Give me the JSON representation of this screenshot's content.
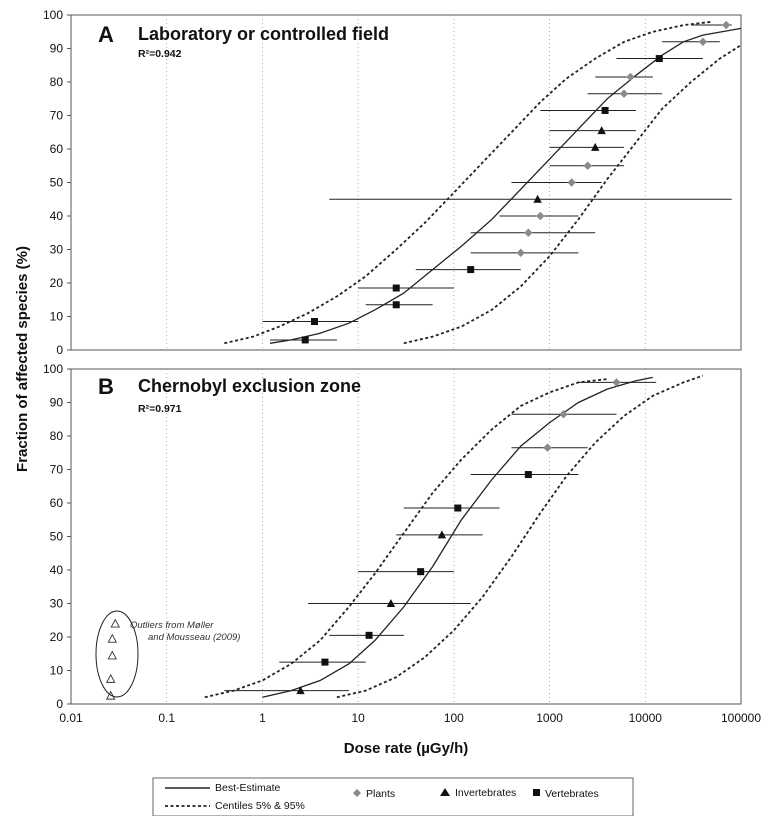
{
  "figure": {
    "xlabel": "Dose rate (µGy/h)",
    "ylabel": "Fraction of affected species (%)",
    "x_ticks": [
      "0.01",
      "0.1",
      "1",
      "10",
      "100",
      "1000",
      "10000",
      "100000"
    ],
    "y_ticks": [
      "0",
      "10",
      "20",
      "30",
      "40",
      "50",
      "60",
      "70",
      "80",
      "90",
      "100"
    ],
    "legend": {
      "best_estimate": "Best-Estimate",
      "centiles": "Centiles 5% & 95%",
      "plants": "Plants",
      "invertebrates": "Invertebrates",
      "vertebrates": "Vertebrates"
    },
    "colors": {
      "plants": "#8a8a8a",
      "invertebrates": "#111111",
      "vertebrates": "#111111",
      "curves": "#222222"
    }
  },
  "chart_data": [
    {
      "type": "scatter",
      "panel_letter": "A",
      "title": "Laboratory or controlled field",
      "r2_text": "R²=0.942",
      "x_scale": "log",
      "xlim": [
        0.01,
        100000
      ],
      "ylim": [
        0,
        100
      ],
      "grid": "vertical-dotted",
      "series": [
        {
          "name": "Best-Estimate",
          "kind": "line",
          "x": [
            1.2,
            2,
            4,
            8,
            15,
            30,
            60,
            120,
            250,
            500,
            1000,
            2000,
            4000,
            8000,
            15000,
            25000,
            40000,
            100000
          ],
          "y": [
            2,
            3,
            5,
            8,
            12,
            17,
            24,
            31,
            39,
            48,
            57,
            66,
            75,
            82,
            88,
            92,
            94,
            96
          ]
        },
        {
          "name": "Centile 5%",
          "kind": "dashed",
          "x": [
            0.4,
            0.8,
            1.5,
            3,
            6,
            12,
            25,
            50,
            100,
            200,
            400,
            800,
            1500,
            3000,
            6000,
            12000,
            25000,
            50000
          ],
          "y": [
            2,
            4,
            7,
            11,
            16,
            22,
            30,
            38,
            47,
            56,
            65,
            74,
            81,
            87,
            92,
            95,
            97,
            98
          ]
        },
        {
          "name": "Centile 95%",
          "kind": "dashed",
          "x": [
            30,
            60,
            120,
            250,
            500,
            1000,
            2000,
            4000,
            8000,
            15000,
            30000,
            60000,
            100000
          ],
          "y": [
            2,
            4,
            7,
            12,
            19,
            28,
            39,
            51,
            62,
            72,
            80,
            87,
            91
          ]
        },
        {
          "name": "Plants",
          "kind": "points",
          "points": [
            {
              "x": 70000,
              "y": 97,
              "xmin": 30000,
              "xmax": 80000
            },
            {
              "x": 40000,
              "y": 92,
              "xmin": 15000,
              "xmax": 60000
            },
            {
              "x": 7000,
              "y": 81.5,
              "xmin": 3000,
              "xmax": 12000
            },
            {
              "x": 6000,
              "y": 76.5,
              "xmin": 2500,
              "xmax": 15000
            },
            {
              "x": 2500,
              "y": 55,
              "xmin": 1000,
              "xmax": 6000
            },
            {
              "x": 1700,
              "y": 50,
              "xmin": 400,
              "xmax": 3500
            },
            {
              "x": 800,
              "y": 40,
              "xmin": 300,
              "xmax": 2000
            },
            {
              "x": 600,
              "y": 35,
              "xmin": 150,
              "xmax": 3000
            },
            {
              "x": 500,
              "y": 29,
              "xmin": 150,
              "xmax": 2000
            }
          ]
        },
        {
          "name": "Invertebrates",
          "kind": "points",
          "points": [
            {
              "x": 3500,
              "y": 65.5,
              "xmin": 1000,
              "xmax": 8000
            },
            {
              "x": 3000,
              "y": 60.5,
              "xmin": 1000,
              "xmax": 6000
            },
            {
              "x": 750,
              "y": 45,
              "xmin": 5,
              "xmax": 80000
            }
          ]
        },
        {
          "name": "Vertebrates",
          "kind": "points",
          "points": [
            {
              "x": 14000,
              "y": 87,
              "xmin": 5000,
              "xmax": 40000
            },
            {
              "x": 3800,
              "y": 71.5,
              "xmin": 800,
              "xmax": 8000
            },
            {
              "x": 150,
              "y": 24,
              "xmin": 40,
              "xmax": 500
            },
            {
              "x": 25,
              "y": 18.5,
              "xmin": 10,
              "xmax": 100
            },
            {
              "x": 25,
              "y": 13.5,
              "xmin": 12,
              "xmax": 60
            },
            {
              "x": 3.5,
              "y": 8.5,
              "xmin": 1,
              "xmax": 10
            },
            {
              "x": 2.8,
              "y": 3,
              "xmin": 1.2,
              "xmax": 6
            }
          ]
        }
      ]
    },
    {
      "type": "scatter",
      "panel_letter": "B",
      "title": "Chernobyl exclusion zone",
      "r2_text": "R²=0.971",
      "x_scale": "log",
      "xlim": [
        0.01,
        100000
      ],
      "ylim": [
        0,
        100
      ],
      "grid": "vertical-dotted",
      "annotation": "Outliers from Møller and Mousseau (2009)",
      "series": [
        {
          "name": "Best-Estimate",
          "kind": "line",
          "x": [
            1,
            2,
            4,
            8,
            15,
            30,
            60,
            120,
            250,
            500,
            1000,
            2000,
            4000,
            8000,
            12000
          ],
          "y": [
            2,
            4,
            7,
            12,
            19,
            29,
            41,
            55,
            67,
            77,
            84,
            90,
            94,
            96.5,
            97.5
          ]
        },
        {
          "name": "Centile 5%",
          "kind": "dashed",
          "x": [
            0.25,
            0.5,
            1,
            2,
            4,
            8,
            15,
            30,
            60,
            120,
            250,
            500,
            1000,
            2000,
            4000
          ],
          "y": [
            2,
            4,
            7,
            12,
            19,
            29,
            39,
            51,
            63,
            73,
            82,
            89,
            93,
            96,
            97
          ]
        },
        {
          "name": "Centile 95%",
          "kind": "dashed",
          "x": [
            6,
            12,
            25,
            50,
            100,
            200,
            400,
            800,
            1500,
            3000,
            6000,
            12000,
            25000,
            40000
          ],
          "y": [
            2,
            4,
            8,
            14,
            22,
            32,
            44,
            57,
            68,
            78,
            86,
            92,
            96,
            98
          ]
        },
        {
          "name": "Plants",
          "kind": "points",
          "points": [
            {
              "x": 5000,
              "y": 96,
              "xmin": 2000,
              "xmax": 13000
            },
            {
              "x": 1400,
              "y": 86.5,
              "xmin": 400,
              "xmax": 5000
            },
            {
              "x": 950,
              "y": 76.5,
              "xmin": 400,
              "xmax": 2500
            }
          ]
        },
        {
          "name": "Invertebrates",
          "kind": "points",
          "points": [
            {
              "x": 75,
              "y": 50.5,
              "xmin": 25,
              "xmax": 200
            },
            {
              "x": 22,
              "y": 30,
              "xmin": 3,
              "xmax": 150
            },
            {
              "x": 2.5,
              "y": 4,
              "xmin": 0.4,
              "xmax": 8
            }
          ]
        },
        {
          "name": "Vertebrates",
          "kind": "points",
          "points": [
            {
              "x": 600,
              "y": 68.5,
              "xmin": 150,
              "xmax": 2000
            },
            {
              "x": 110,
              "y": 58.5,
              "xmin": 30,
              "xmax": 300
            },
            {
              "x": 45,
              "y": 39.5,
              "xmin": 10,
              "xmax": 100
            },
            {
              "x": 13,
              "y": 20.5,
              "xmin": 5,
              "xmax": 30
            },
            {
              "x": 4.5,
              "y": 12.5,
              "xmin": 1.5,
              "xmax": 12
            }
          ]
        },
        {
          "name": "Outliers",
          "kind": "open-triangles",
          "points": [
            {
              "x": 0.029,
              "y": 24
            },
            {
              "x": 0.027,
              "y": 19.5
            },
            {
              "x": 0.027,
              "y": 14.5
            },
            {
              "x": 0.026,
              "y": 7.5
            },
            {
              "x": 0.026,
              "y": 2.5
            }
          ]
        }
      ]
    }
  ]
}
